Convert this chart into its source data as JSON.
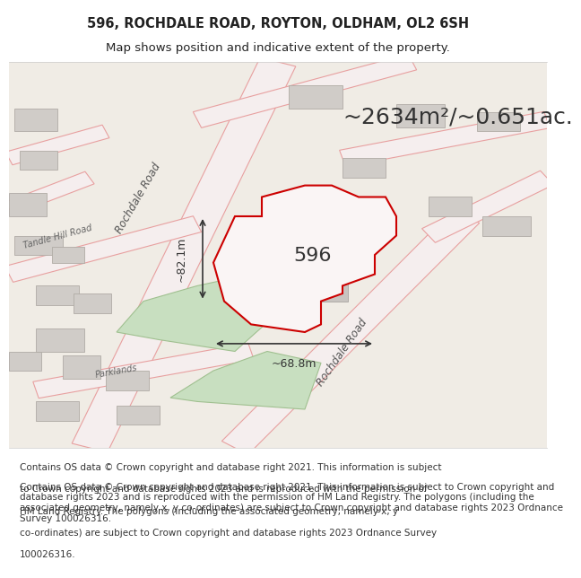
{
  "title_line1": "596, ROCHDALE ROAD, ROYTON, OLDHAM, OL2 6SH",
  "title_line2": "Map shows position and indicative extent of the property.",
  "area_text": "~2634m²/~0.651ac.",
  "label_596": "596",
  "dim_vertical": "~82.1m",
  "dim_horizontal": "~68.8m",
  "road_label_1": "Rochdale Road",
  "road_label_2": "Rochdale Road",
  "road_label_tandle": "Tandle Hill Road",
  "road_label_parklands": "Parklands",
  "footer_text": "Contains OS data © Crown copyright and database right 2021. This information is subject to Crown copyright and database rights 2023 and is reproduced with the permission of HM Land Registry. The polygons (including the associated geometry, namely x, y co-ordinates) are subject to Crown copyright and database rights 2023 Ordnance Survey 100026316.",
  "bg_color": "#f5f0eb",
  "map_bg": "#f5f0eb",
  "road_color": "#f5f0eb",
  "road_outline_color": "#e8a0a0",
  "property_fill": "#f5f0eb",
  "property_outline": "#cc0000",
  "building_fill": "#d0ccc8",
  "green_fill": "#c8dfc0",
  "title_fontsize": 10.5,
  "subtitle_fontsize": 9.5,
  "area_fontsize": 18,
  "label_fontsize": 16,
  "dim_fontsize": 9,
  "footer_fontsize": 7.5,
  "road_label_fontsize": 8.5
}
